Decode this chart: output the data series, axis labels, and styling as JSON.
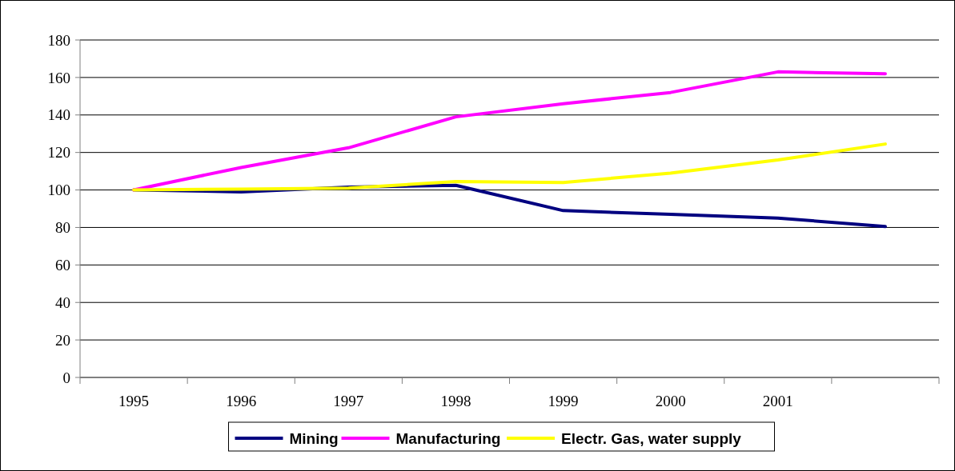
{
  "chart_data": {
    "type": "line",
    "categories": [
      "1995",
      "1996",
      "1997",
      "1998",
      "1999",
      "2000",
      "2001",
      null
    ],
    "series": [
      {
        "name": "Mining",
        "color": "#000080",
        "values": [
          100,
          99,
          101.5,
          102.5,
          89,
          87,
          85,
          80.5
        ]
      },
      {
        "name": "Manufacturing",
        "color": "#ff00ff",
        "values": [
          100,
          112,
          122.5,
          139,
          146,
          152,
          163,
          162
        ]
      },
      {
        "name": "Electr. Gas, water supply",
        "color": "#ffff00",
        "values": [
          100,
          100.5,
          101,
          104.5,
          104,
          109,
          116,
          124.5
        ]
      }
    ],
    "ylim": [
      0,
      180
    ],
    "yticks": [
      0,
      20,
      40,
      60,
      80,
      100,
      120,
      140,
      160,
      180
    ],
    "grid": "y",
    "legend": "bottom",
    "marker": "none",
    "line_style": "solid"
  }
}
